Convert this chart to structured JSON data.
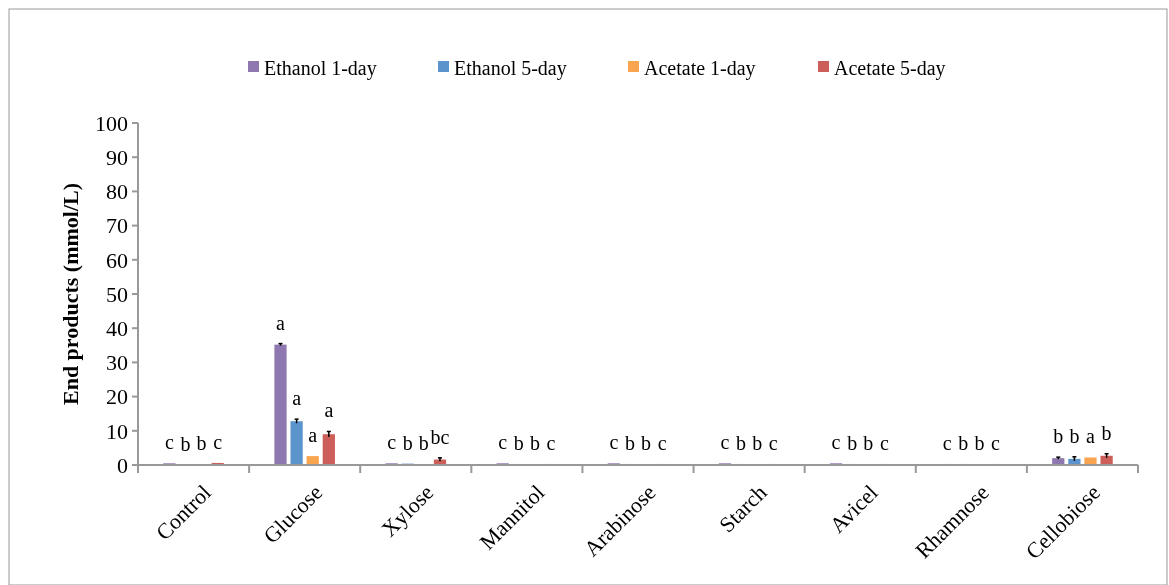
{
  "chart_data": {
    "type": "bar",
    "ylabel": "End products (mmol/L)",
    "categories": [
      "Control",
      "Glucose",
      "Xylose",
      "Mannitol",
      "Arabinose",
      "Starch",
      "Avicel",
      "Rhamnose",
      "Cellobiose"
    ],
    "series": [
      {
        "name": "Ethanol 1-day",
        "color": "#8f78b0",
        "values": [
          0.5,
          35.2,
          0.5,
          0.5,
          0.5,
          0.5,
          0.5,
          0.3,
          2.0
        ],
        "errors": [
          null,
          0.3,
          null,
          null,
          null,
          null,
          null,
          null,
          0.3
        ],
        "value_labels": [
          "c",
          "a",
          "c",
          "c",
          "c",
          "c",
          "c",
          "c",
          "b"
        ]
      },
      {
        "name": "Ethanol 5-day",
        "color": "#5b93cc",
        "values": [
          0.1,
          12.8,
          0.4,
          0.3,
          0.3,
          0.3,
          0.3,
          0.3,
          1.8
        ],
        "errors": [
          null,
          0.6,
          null,
          null,
          null,
          null,
          null,
          null,
          0.6
        ],
        "value_labels": [
          "b",
          "a",
          "b",
          "b",
          "b",
          "b",
          "b",
          "b",
          "b"
        ]
      },
      {
        "name": "Acetate 1-day",
        "color": "#f9a54f",
        "values": [
          0.3,
          2.6,
          0.3,
          0.2,
          0.2,
          0.2,
          0.2,
          0.2,
          2.2
        ],
        "errors": [
          null,
          null,
          null,
          null,
          null,
          null,
          null,
          null,
          null
        ],
        "value_labels": [
          "b",
          "a",
          "b",
          "b",
          "b",
          "b",
          "b",
          "b",
          "a"
        ]
      },
      {
        "name": "Acetate 5-day",
        "color": "#cc5f5a",
        "values": [
          0.6,
          9.0,
          1.6,
          0.3,
          0.3,
          0.3,
          0.3,
          0.3,
          2.7
        ],
        "errors": [
          null,
          0.8,
          0.5,
          null,
          null,
          null,
          null,
          null,
          0.6
        ],
        "value_labels": [
          "c",
          "a",
          "bc",
          "c",
          "c",
          "c",
          "c",
          "c",
          "b"
        ]
      }
    ],
    "ylim": [
      0,
      100
    ],
    "yticks": [
      0,
      10,
      20,
      30,
      40,
      50,
      60,
      70,
      80,
      90,
      100
    ],
    "grid": false,
    "legend": "top"
  }
}
